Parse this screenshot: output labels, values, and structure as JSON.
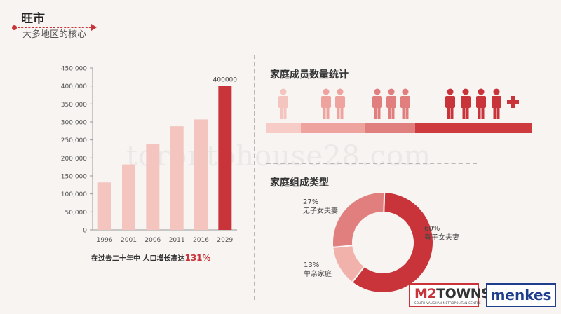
{
  "header": {
    "title": "旺市",
    "subtitle": "大多地区的核心"
  },
  "watermark": "torontohouse28.com",
  "colors": {
    "accent": "#c8343a",
    "bar_light": "#f4c4be",
    "bar_dark": "#c8343a",
    "axis": "#9a9a9a"
  },
  "bar_caption": {
    "text": "在过去二十年中 人口增长高达",
    "highlight": "131%"
  },
  "household_size": {
    "title": "家庭成员数量统计",
    "groups": [
      {
        "count": 1,
        "color": "#f4c4be"
      },
      {
        "count": 2,
        "color": "#eea39e"
      },
      {
        "count": 3,
        "color": "#e07f7e"
      },
      {
        "count": 4,
        "color": "#c8343a",
        "plus": true
      }
    ],
    "bar_segments": [
      {
        "share": 0.13,
        "color": "#f8ccc6"
      },
      {
        "share": 0.24,
        "color": "#eea39e"
      },
      {
        "share": 0.19,
        "color": "#df7f7e"
      },
      {
        "share": 0.44,
        "color": "#cd3b3f"
      }
    ]
  },
  "household_type": {
    "title": "家庭组成类型"
  },
  "logos": {
    "m2_prefix": "M2",
    "m2_word": "TOWNS",
    "m2_sub": "SOUTH VAUGHAN METROPOLITAN CENTRE",
    "menkes": "menkes"
  },
  "chart_data": [
    {
      "type": "bar",
      "categories": [
        "1996",
        "2001",
        "2006",
        "2011",
        "2016",
        "2029"
      ],
      "values": [
        132000,
        182000,
        238000,
        288000,
        307000,
        400000
      ],
      "highlight_index": 5,
      "data_labels": [
        "",
        "",
        "",
        "",
        "",
        "400000"
      ],
      "yticks": [
        "0",
        "50,000",
        "100,000",
        "150,000",
        "200,000",
        "250,000",
        "300,000",
        "350,000",
        "400,000",
        "450,000"
      ],
      "ylim": [
        0,
        450000
      ],
      "grid": false
    },
    {
      "type": "pie",
      "donut": true,
      "slices": [
        {
          "label_pct": "60%",
          "label": "有子女夫妻",
          "value": 60,
          "color": "#c8343a"
        },
        {
          "label_pct": "13%",
          "label": "单亲家庭",
          "value": 13,
          "color": "#f2b2ac"
        },
        {
          "label_pct": "27%",
          "label": "无子女夫妻",
          "value": 27,
          "color": "#e07f7e"
        }
      ]
    }
  ]
}
